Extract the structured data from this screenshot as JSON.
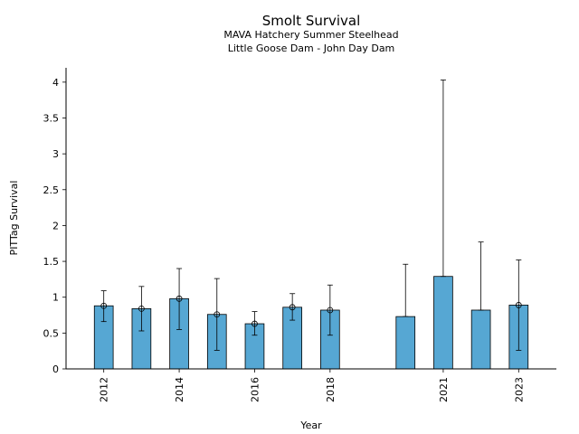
{
  "chart_data": {
    "type": "bar",
    "title": "Smolt Survival",
    "subtitle_lines": [
      "MAVA Hatchery Summer Steelhead",
      "Little Goose Dam - John Day Dam"
    ],
    "xlabel": "Year",
    "ylabel": "PITTag Survival",
    "ylim": [
      0,
      4.2
    ],
    "xlim": [
      2011.0,
      2024.0
    ],
    "y_ticks": [
      0,
      0.5,
      1,
      1.5,
      2,
      2.5,
      3,
      3.5,
      4
    ],
    "y_tick_labels": [
      "0",
      "0.5",
      "1",
      "1.5",
      "2",
      "2.5",
      "3",
      "3.5",
      "4"
    ],
    "x_ticks": [
      2012,
      2014,
      2016,
      2018,
      2021,
      2023
    ],
    "x_tick_labels": [
      "2012",
      "2014",
      "2016",
      "2018",
      "2021",
      "2023"
    ],
    "grid": false,
    "bar_color": "#56a7d3",
    "edge_color": "#000000",
    "bars": [
      {
        "year": 2012,
        "value": 0.88,
        "err_low": 0.66,
        "err_high": 1.09,
        "marker": true
      },
      {
        "year": 2013,
        "value": 0.84,
        "err_low": 0.53,
        "err_high": 1.15,
        "marker": true
      },
      {
        "year": 2014,
        "value": 0.98,
        "err_low": 0.55,
        "err_high": 1.4,
        "marker": true
      },
      {
        "year": 2015,
        "value": 0.76,
        "err_low": 0.26,
        "err_high": 1.26,
        "marker": true
      },
      {
        "year": 2016,
        "value": 0.63,
        "err_low": 0.47,
        "err_high": 0.8,
        "marker": true
      },
      {
        "year": 2017,
        "value": 0.86,
        "err_low": 0.68,
        "err_high": 1.05,
        "marker": true
      },
      {
        "year": 2018,
        "value": 0.82,
        "err_low": 0.47,
        "err_high": 1.17,
        "marker": true
      },
      {
        "year": 2020,
        "value": 0.73,
        "err_low": 0.73,
        "err_high": 1.46,
        "marker": false
      },
      {
        "year": 2021,
        "value": 1.29,
        "err_low": 1.29,
        "err_high": 4.03,
        "marker": false
      },
      {
        "year": 2022,
        "value": 0.82,
        "err_low": 0.82,
        "err_high": 1.77,
        "marker": false
      },
      {
        "year": 2023,
        "value": 0.89,
        "err_low": 0.26,
        "err_high": 1.52,
        "marker": true
      }
    ]
  }
}
